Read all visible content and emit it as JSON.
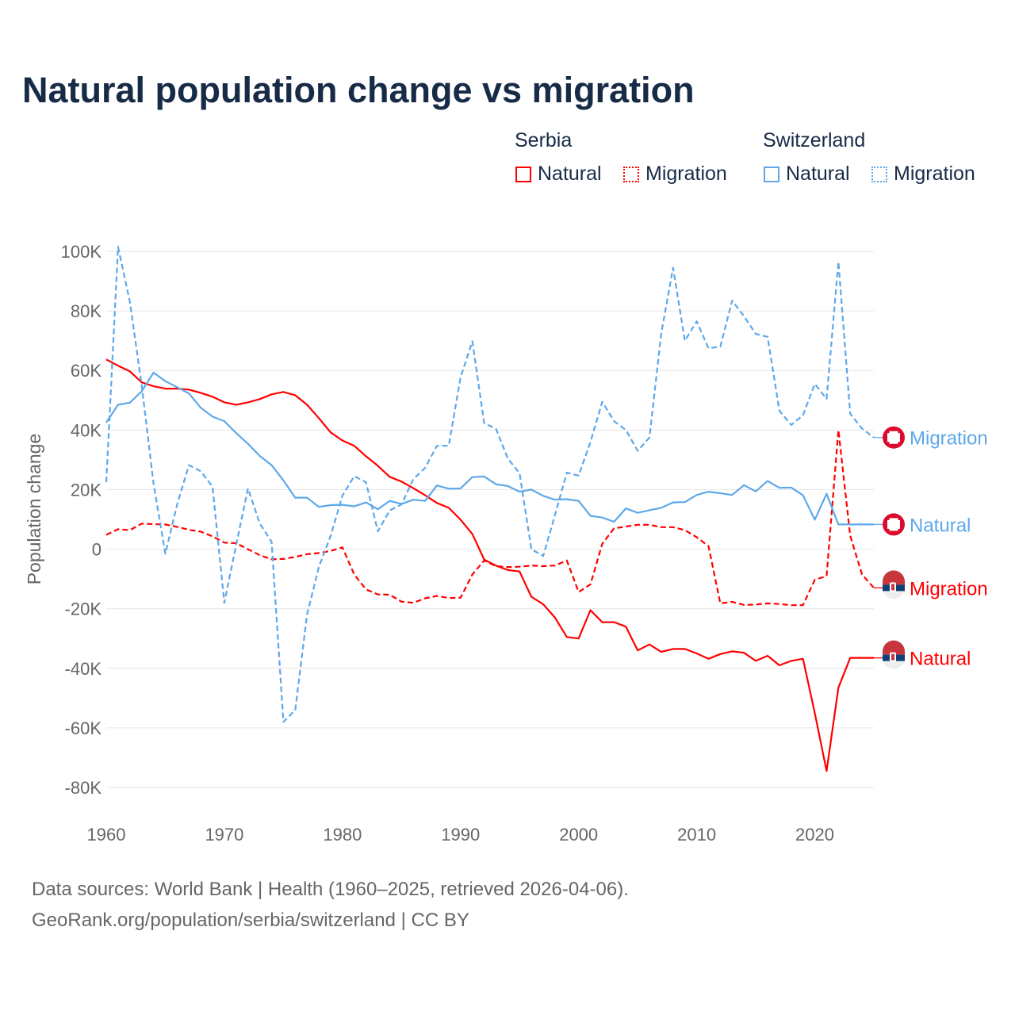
{
  "title": "Natural population change vs migration",
  "legend": {
    "groups": [
      {
        "name": "Serbia",
        "items": [
          "Natural",
          "Migration"
        ]
      },
      {
        "name": "Switzerland",
        "items": [
          "Natural",
          "Migration"
        ]
      }
    ]
  },
  "colors": {
    "serbia": "#ff0000",
    "switzerland": "#5ea8ea",
    "title": "#172b47"
  },
  "footer": {
    "line1": "Data sources: World Bank | Health (1960–2025, retrieved 2026-04-06).",
    "line2": "GeoRank.org/population/serbia/switzerland | CC BY"
  },
  "chart_data": {
    "type": "line",
    "title": "Natural population change vs migration",
    "xlabel": "",
    "ylabel": "Population change",
    "xlim": [
      1960,
      2025
    ],
    "ylim": [
      -80000,
      100000
    ],
    "x_ticks": [
      1960,
      1970,
      1980,
      1990,
      2000,
      2010,
      2020
    ],
    "x_tick_labels": [
      "1960",
      "1970",
      "1980",
      "1990",
      "2000",
      "2010",
      "2020"
    ],
    "y_ticks": [
      100000,
      80000,
      60000,
      40000,
      20000,
      0,
      -20000,
      -40000,
      -60000,
      -80000
    ],
    "y_tick_labels": [
      "100K",
      "80K",
      "60K",
      "40K",
      "20K",
      "0",
      "-20K",
      "-40K",
      "-60K",
      "-80K"
    ],
    "grid": true,
    "legend_position": "top-right",
    "x_start": 1960,
    "series": [
      {
        "name": "Serbia Natural",
        "country": "Serbia",
        "kind": "Natural",
        "end_label": "Natural",
        "color": "#ff0000",
        "dashed": false,
        "values_k": [
          63.7,
          61.6,
          59.7,
          56,
          54.7,
          53.9,
          53.9,
          53.6,
          52.5,
          51.2,
          49.3,
          48.5,
          49.3,
          50.4,
          52,
          52.8,
          51.7,
          48.5,
          44,
          39.2,
          36.5,
          34.7,
          31.2,
          28,
          24.3,
          22.7,
          20.5,
          18.1,
          15.5,
          13.9,
          9.9,
          5.1,
          -3.5,
          -5.5,
          -7,
          -7.5,
          -16,
          -18.5,
          -23,
          -29.5,
          -30,
          -20.5,
          -24.5,
          -24.5,
          -26,
          -34,
          -32,
          -34.5,
          -33.5,
          -33.5,
          -35,
          -36.8,
          -35.2,
          -34.3,
          -34.8,
          -37.5,
          -35.8,
          -39,
          -37.5,
          -36.8,
          -55,
          -74.5,
          -46.5,
          -36.5,
          -36.5,
          -36.5
        ]
      },
      {
        "name": "Serbia Migration",
        "country": "Serbia",
        "kind": "Migration",
        "end_label": "Migration",
        "color": "#ff0000",
        "dashed": true,
        "values_k": [
          4.8,
          6.7,
          6.4,
          8.6,
          8.4,
          8.3,
          7.5,
          6.5,
          5.9,
          4.3,
          2.2,
          2,
          0,
          -2,
          -3.4,
          -3.3,
          -2.6,
          -1.7,
          -1.3,
          -0.6,
          0.6,
          -8.5,
          -13.5,
          -15.2,
          -15.3,
          -17.6,
          -18,
          -16.5,
          -15.7,
          -16.4,
          -16.3,
          -8.5,
          -3.8,
          -5.7,
          -6,
          -5.9,
          -5.5,
          -5.7,
          -5.5,
          -3.8,
          -14.4,
          -11.8,
          1.8,
          7,
          7.6,
          8.2,
          8.2,
          7.4,
          7.4,
          6.4,
          4,
          1,
          -18.2,
          -17.7,
          -18.7,
          -18.6,
          -18.2,
          -18.4,
          -18.8,
          -18.8,
          -10.3,
          -9,
          40,
          4.5,
          -8.5,
          -13
        ]
      },
      {
        "name": "Switzerland Natural",
        "country": "Switzerland",
        "kind": "Natural",
        "end_label": "Natural",
        "color": "#5ea8ea",
        "dashed": false,
        "values_k": [
          42.5,
          48.5,
          49.2,
          53,
          59.3,
          56.4,
          54.4,
          52.3,
          47.5,
          44.5,
          43,
          39,
          35.4,
          31.3,
          28.2,
          23.1,
          17.3,
          17.3,
          14.2,
          14.8,
          14.9,
          14.4,
          15.7,
          13.4,
          16.2,
          15.2,
          16.6,
          16.2,
          21.4,
          20.3,
          20.4,
          24.2,
          24.4,
          21.8,
          21.2,
          19.3,
          20,
          17.9,
          16.6,
          16.8,
          16.2,
          11.2,
          10.6,
          9.2,
          13.7,
          12.2,
          13.1,
          13.9,
          15.7,
          15.8,
          18.2,
          19.3,
          18.8,
          18.2,
          21.5,
          19.4,
          22.9,
          20.6,
          20.7,
          18.1,
          9.9,
          18.6,
          8.3,
          8.3,
          8.3,
          8.3
        ]
      },
      {
        "name": "Switzerland Migration",
        "country": "Switzerland",
        "kind": "Migration",
        "end_label": "Migration",
        "color": "#5ea8ea",
        "dashed": true,
        "values_k": [
          22.5,
          101.5,
          83,
          55,
          22,
          -1.5,
          15,
          28.2,
          26.2,
          21,
          -18,
          1.4,
          20.4,
          8.6,
          2.5,
          -58,
          -54,
          -22,
          -6,
          4.5,
          18,
          24.5,
          22.5,
          6,
          13,
          15,
          23.5,
          27.3,
          34.7,
          34.7,
          57.7,
          69.8,
          42.3,
          40.5,
          30.5,
          25.5,
          0,
          -2.3,
          11.5,
          25.7,
          24.7,
          36,
          49.5,
          43,
          40,
          33,
          37.5,
          72.5,
          94.5,
          70,
          76.5,
          67.5,
          68,
          83.5,
          78.2,
          72.3,
          71.3,
          46.5,
          41.7,
          45,
          55.5,
          50.5,
          96.5,
          45.5,
          40.5,
          37.5
        ]
      }
    ]
  }
}
